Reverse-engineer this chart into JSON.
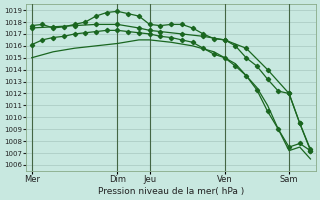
{
  "title": "Pression niveau de la mer( hPa )",
  "bg_color": "#c8e8e0",
  "grid_color": "#a8c8c0",
  "line_color": "#1a6620",
  "ylim": [
    1005.5,
    1019.5
  ],
  "yticks": [
    1006,
    1007,
    1008,
    1009,
    1010,
    1011,
    1012,
    1013,
    1014,
    1015,
    1016,
    1017,
    1018,
    1019
  ],
  "xtick_labels": [
    "Mer",
    "Dim",
    "Jeu",
    "Ven",
    "Sam"
  ],
  "xtick_positions": [
    0,
    8,
    11,
    18,
    24
  ],
  "vlines": [
    0,
    8,
    11,
    18,
    24
  ],
  "series": [
    {
      "x": [
        0,
        1,
        2,
        3,
        4,
        5,
        6,
        7,
        8,
        9,
        10,
        11,
        12,
        13,
        14,
        15,
        16,
        17,
        18,
        19,
        20,
        21,
        22,
        23,
        24,
        25,
        26
      ],
      "y": [
        1017.7,
        1017.8,
        1017.5,
        1017.6,
        1017.8,
        1018.0,
        1018.5,
        1018.8,
        1018.9,
        1018.7,
        1018.5,
        1017.8,
        1017.7,
        1017.8,
        1017.8,
        1017.5,
        1017.0,
        1016.6,
        1016.5,
        1016.0,
        1015.0,
        1014.3,
        1013.2,
        1012.2,
        1012.0,
        1009.5,
        1007.3
      ],
      "markers": true
    },
    {
      "x": [
        0,
        2,
        4,
        6,
        8,
        10,
        11,
        12,
        14,
        16,
        18,
        20,
        22,
        24,
        25,
        26
      ],
      "y": [
        1017.5,
        1017.6,
        1017.7,
        1017.8,
        1017.8,
        1017.5,
        1017.3,
        1017.2,
        1017.0,
        1016.8,
        1016.5,
        1015.8,
        1014.0,
        1012.0,
        1009.5,
        1007.2
      ],
      "markers": true
    },
    {
      "x": [
        0,
        1,
        2,
        3,
        4,
        5,
        6,
        7,
        8,
        9,
        10,
        11,
        12,
        13,
        14,
        15,
        16,
        17,
        18,
        19,
        20,
        21,
        22,
        23,
        24,
        25,
        26
      ],
      "y": [
        1016.1,
        1016.5,
        1016.7,
        1016.8,
        1017.0,
        1017.1,
        1017.2,
        1017.3,
        1017.3,
        1017.2,
        1017.1,
        1017.0,
        1016.8,
        1016.7,
        1016.5,
        1016.3,
        1015.8,
        1015.3,
        1015.0,
        1014.3,
        1013.5,
        1012.3,
        1010.5,
        1009.0,
        1007.5,
        1007.8,
        1007.2
      ],
      "markers": true
    },
    {
      "x": [
        0,
        2,
        4,
        6,
        8,
        10,
        11,
        13,
        15,
        17,
        18,
        19,
        20,
        21,
        22,
        23,
        24,
        25,
        26
      ],
      "y": [
        1015.0,
        1015.5,
        1015.8,
        1016.0,
        1016.2,
        1016.5,
        1016.5,
        1016.3,
        1016.0,
        1015.5,
        1015.0,
        1014.5,
        1013.5,
        1012.5,
        1011.0,
        1009.0,
        1007.2,
        1007.5,
        1006.5
      ],
      "markers": false
    }
  ]
}
